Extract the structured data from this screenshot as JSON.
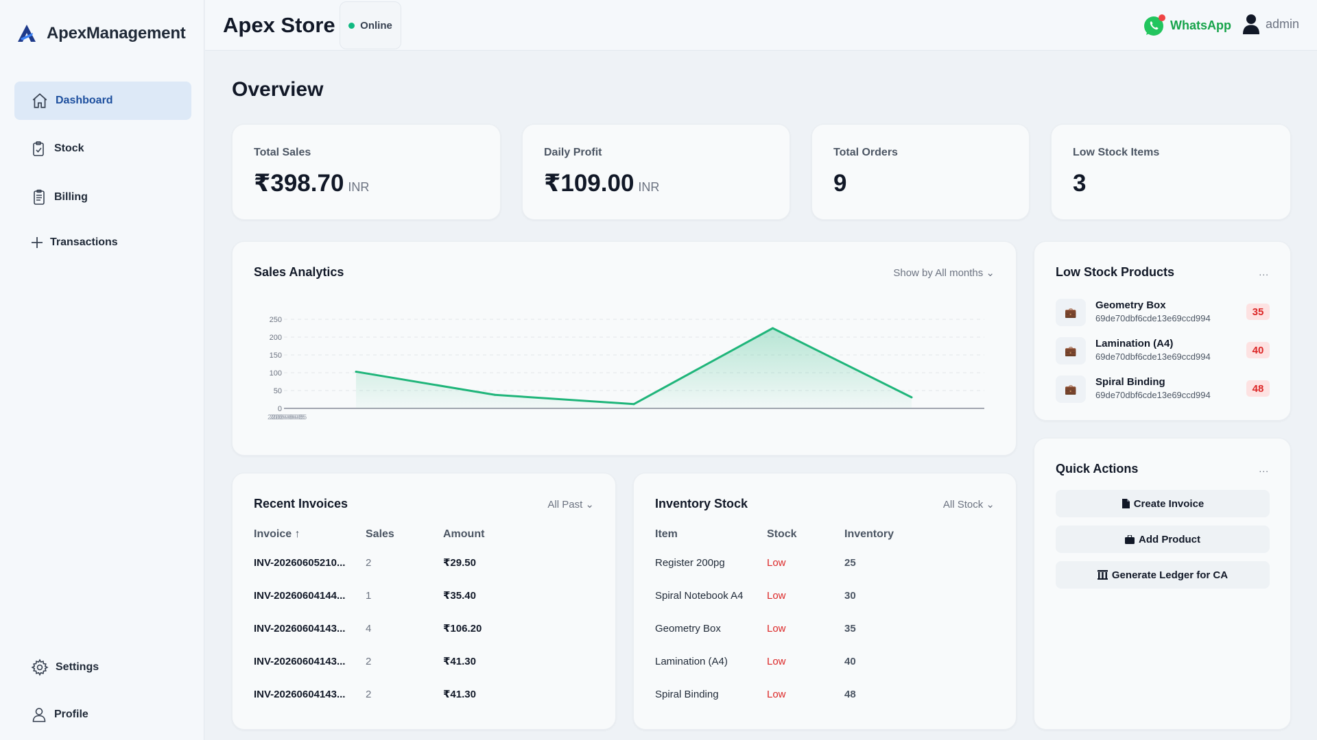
{
  "brand": {
    "name": "ApexManagement"
  },
  "sidebar": {
    "items": [
      {
        "label": "Dashboard",
        "icon": "home-icon"
      },
      {
        "label": "Stock",
        "icon": "clipboard-check-icon"
      },
      {
        "label": "Billing",
        "icon": "receipt-icon"
      },
      {
        "label": "Transactions",
        "icon": "plus-icon"
      }
    ],
    "bottom": [
      {
        "label": "Settings",
        "icon": "gear-icon"
      },
      {
        "label": "Profile",
        "icon": "user-icon"
      }
    ]
  },
  "header": {
    "title": "Apex Store",
    "status": "Online",
    "whatsapp_label": "WhatsApp",
    "user": "admin"
  },
  "main": {
    "title": "Overview",
    "stats": [
      {
        "label": "Total Sales",
        "value": "₹398.70",
        "unit": "INR"
      },
      {
        "label": "Daily Profit",
        "value": "₹109.00",
        "unit": "INR"
      },
      {
        "label": "Total Orders",
        "value": "9",
        "unit": ""
      },
      {
        "label": "Low Stock Items",
        "value": "3",
        "unit": ""
      }
    ],
    "sales_analytics": {
      "title": "Sales Analytics",
      "filter": "Show by All months ⌄"
    },
    "low_stock": {
      "title": "Low Stock Products",
      "menu": "...",
      "items": [
        {
          "name": "Geometry Box",
          "id": "69de70dbf6cde13e69ccd994",
          "count": "35"
        },
        {
          "name": "Lamination (A4)",
          "id": "69de70dbf6cde13e69ccd994",
          "count": "40"
        },
        {
          "name": "Spiral Binding",
          "id": "69de70dbf6cde13e69ccd994",
          "count": "48"
        }
      ]
    },
    "recent_invoices": {
      "title": "Recent Invoices",
      "filter": "All Past ⌄",
      "columns": [
        "Invoice ↑",
        "Sales",
        "Amount"
      ],
      "rows": [
        {
          "invoice": "INV-20260605210...",
          "sales": "2",
          "amount": "₹29.50"
        },
        {
          "invoice": "INV-20260604144...",
          "sales": "1",
          "amount": "₹35.40"
        },
        {
          "invoice": "INV-20260604143...",
          "sales": "4",
          "amount": "₹106.20"
        },
        {
          "invoice": "INV-20260604143...",
          "sales": "2",
          "amount": "₹41.30"
        },
        {
          "invoice": "INV-20260604143...",
          "sales": "2",
          "amount": "₹41.30"
        }
      ]
    },
    "inventory": {
      "title": "Inventory Stock",
      "filter": "All Stock ⌄",
      "columns": [
        "Item",
        "Stock",
        "Inventory"
      ],
      "rows": [
        {
          "item": "Register 200pg",
          "stock": "Low",
          "inventory": "25"
        },
        {
          "item": "Spiral Notebook A4",
          "stock": "Low",
          "inventory": "30"
        },
        {
          "item": "Geometry Box",
          "stock": "Low",
          "inventory": "35"
        },
        {
          "item": "Lamination (A4)",
          "stock": "Low",
          "inventory": "40"
        },
        {
          "item": "Spiral Binding",
          "stock": "Low",
          "inventory": "48"
        }
      ]
    },
    "quick_actions": {
      "title": "Quick Actions",
      "menu": "...",
      "buttons": [
        {
          "label": "Create Invoice",
          "icon": "document-icon"
        },
        {
          "label": "Add Product",
          "icon": "box-icon"
        },
        {
          "label": "Generate Ledger for CA",
          "icon": "ledger-icon"
        }
      ]
    }
  },
  "colors": {
    "accent": "#1d4f9e",
    "chart_line": "#1fb57a",
    "low_stock": "#dc2626",
    "whatsapp": "#16a34a"
  },
  "chart_data": {
    "type": "area",
    "title": "Sales Analytics",
    "x": [
      "",
      "",
      "",
      "",
      ""
    ],
    "x_tick_text": "2026-06-05",
    "series": [
      {
        "values": [
          103,
          38,
          12,
          225,
          31
        ]
      }
    ],
    "ylim": [
      0,
      250
    ],
    "yticks": [
      0,
      50,
      100,
      150,
      200,
      250
    ],
    "grid": true
  }
}
